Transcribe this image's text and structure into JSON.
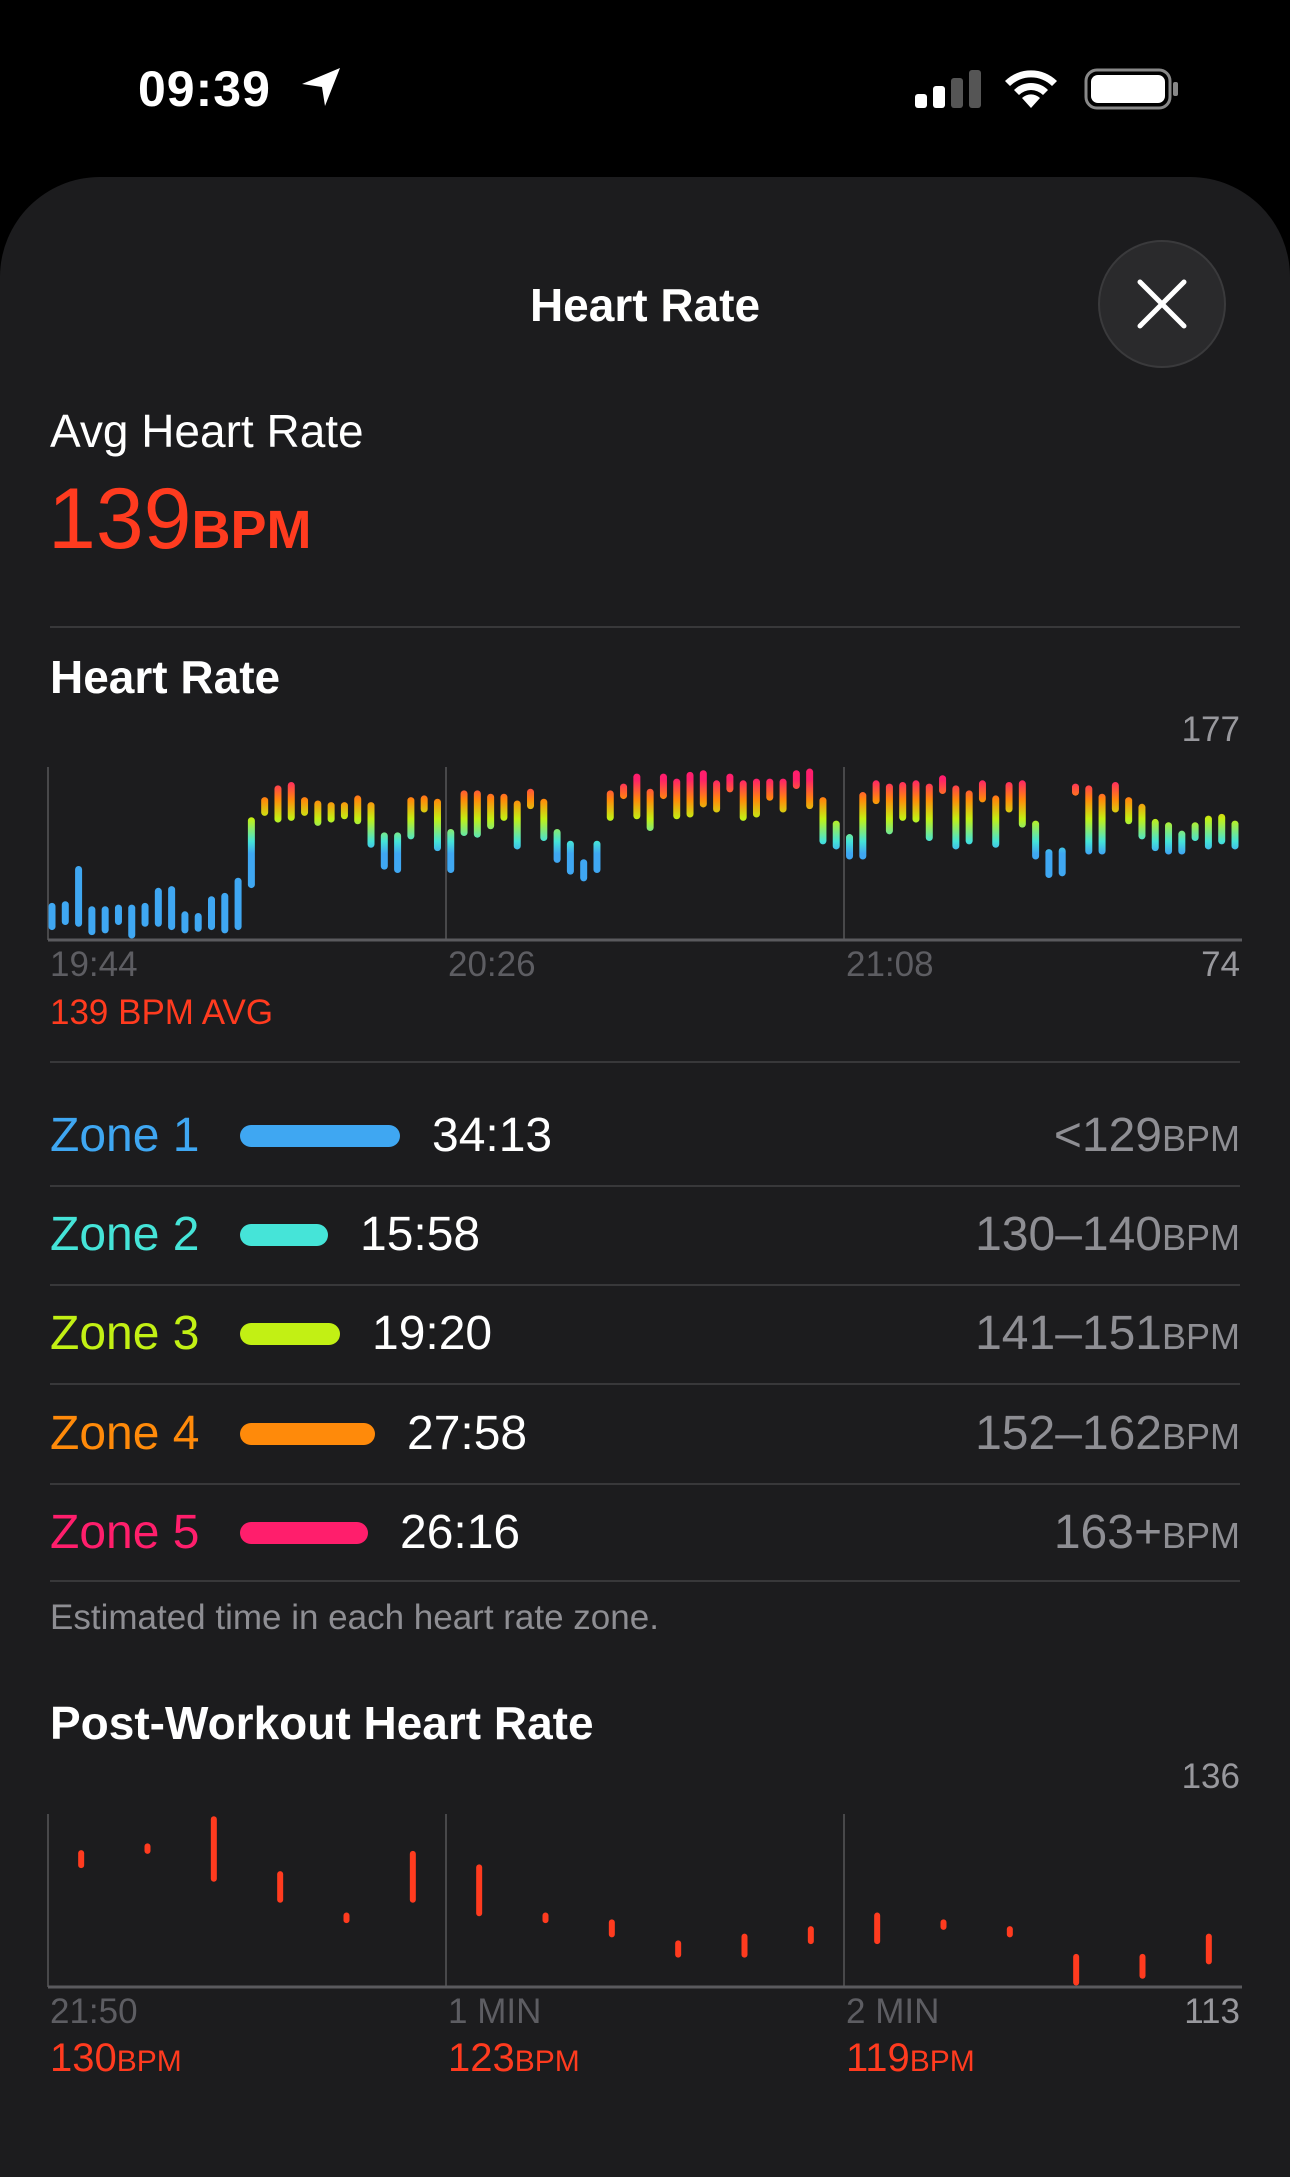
{
  "status_bar": {
    "time": "09:39",
    "icons": [
      "location-arrow-icon",
      "cellular-signal-icon",
      "wifi-icon",
      "battery-icon"
    ]
  },
  "header": {
    "title": "Heart Rate",
    "close_icon": "close-icon"
  },
  "summary": {
    "label": "Avg Heart Rate",
    "value": "139",
    "unit": "BPM"
  },
  "heart_rate_section": {
    "title": "Heart Rate",
    "avg_label": "139 BPM AVG"
  },
  "zones": [
    {
      "name": "Zone 1",
      "time": "34:13",
      "range": "<129",
      "unit": "BPM",
      "color": "#3fa7f2",
      "share": 0.277
    },
    {
      "name": "Zone 2",
      "time": "15:58",
      "range": "130–140",
      "unit": "BPM",
      "color": "#45e4d8",
      "share": 0.129
    },
    {
      "name": "Zone 3",
      "time": "19:20",
      "range": "141–151",
      "unit": "BPM",
      "color": "#c2f014",
      "share": 0.157
    },
    {
      "name": "Zone 4",
      "time": "27:58",
      "range": "152–162",
      "unit": "BPM",
      "color": "#ff8a0a",
      "share": 0.226
    },
    {
      "name": "Zone 5",
      "time": "26:16",
      "range": "163+",
      "unit": "BPM",
      "color": "#ff1e6c",
      "share": 0.212
    }
  ],
  "zones_footnote": "Estimated time in each heart rate zone.",
  "post_section": {
    "title": "Post-Workout Heart Rate",
    "readings": [
      {
        "value": "130",
        "unit": "BPM"
      },
      {
        "value": "123",
        "unit": "BPM"
      },
      {
        "value": "119",
        "unit": "BPM"
      }
    ]
  },
  "chart_data": [
    {
      "type": "bar",
      "subtype": "range",
      "x_tick_labels": [
        "19:44",
        "20:26",
        "21:08"
      ],
      "y_max_label": "177",
      "y_min_label": "74",
      "ylim": [
        74,
        177
      ],
      "grid": "vertical",
      "color_by": "heart rate zone",
      "ranges": [
        [
          82,
          94
        ],
        [
          85,
          95
        ],
        [
          84,
          116
        ],
        [
          79,
          92
        ],
        [
          80,
          92
        ],
        [
          85,
          93
        ],
        [
          77,
          93
        ],
        [
          84,
          94
        ],
        [
          84,
          103
        ],
        [
          82,
          104
        ],
        [
          80,
          89
        ],
        [
          81,
          88
        ],
        [
          82,
          98
        ],
        [
          80,
          100
        ],
        [
          82,
          109
        ],
        [
          107,
          145
        ],
        [
          150,
          157
        ],
        [
          146,
          164
        ],
        [
          147,
          166
        ],
        [
          150,
          157
        ],
        [
          144,
          155
        ],
        [
          146,
          154
        ],
        [
          148,
          154
        ],
        [
          145,
          158
        ],
        [
          131,
          154
        ],
        [
          118,
          136
        ],
        [
          116,
          136
        ],
        [
          136,
          157
        ],
        [
          152,
          158
        ],
        [
          129,
          156
        ],
        [
          116,
          138
        ],
        [
          138,
          161
        ],
        [
          137,
          161
        ],
        [
          142,
          159
        ],
        [
          147,
          159
        ],
        [
          130,
          155
        ],
        [
          154,
          162
        ],
        [
          135,
          156
        ],
        [
          122,
          138
        ],
        [
          115,
          131
        ],
        [
          111,
          120
        ],
        [
          116,
          131
        ],
        [
          147,
          161
        ],
        [
          160,
          165
        ],
        [
          148,
          171
        ],
        [
          141,
          162
        ],
        [
          160,
          171
        ],
        [
          148,
          168
        ],
        [
          149,
          172
        ],
        [
          155,
          173
        ],
        [
          152,
          167
        ],
        [
          164,
          171
        ],
        [
          147,
          167
        ],
        [
          149,
          168
        ],
        [
          159,
          168
        ],
        [
          152,
          168
        ],
        [
          166,
          173
        ],
        [
          154,
          174
        ],
        [
          133,
          157
        ],
        [
          130,
          143
        ],
        [
          124,
          135
        ],
        [
          124,
          160
        ],
        [
          157,
          167
        ],
        [
          139,
          165
        ],
        [
          147,
          166
        ],
        [
          146,
          167
        ],
        [
          135,
          165
        ],
        [
          163,
          170
        ],
        [
          130,
          164
        ],
        [
          133,
          161
        ],
        [
          158,
          167
        ],
        [
          131,
          158
        ],
        [
          152,
          166
        ],
        [
          143,
          167
        ],
        [
          124,
          143
        ],
        [
          113,
          126
        ],
        [
          114,
          127
        ],
        [
          162,
          165
        ],
        [
          127,
          164
        ],
        [
          127,
          159
        ],
        [
          152,
          166
        ],
        [
          145,
          157
        ],
        [
          136,
          153
        ],
        [
          129,
          144
        ],
        [
          127,
          142
        ],
        [
          127,
          137
        ],
        [
          135,
          142
        ],
        [
          130,
          146
        ],
        [
          133,
          147
        ],
        [
          130,
          143
        ]
      ]
    },
    {
      "type": "bar",
      "subtype": "range",
      "x_tick_labels": [
        "21:50",
        "1 MIN",
        "2 MIN"
      ],
      "x_unit": "seconds",
      "xlim": [
        0,
        180
      ],
      "y_max_label": "136",
      "y_min_label": "113",
      "ylim": [
        113,
        136
      ],
      "grid": "vertical",
      "color": "#ff3b1f",
      "x": [
        5,
        15,
        25,
        35,
        45,
        55,
        65,
        75,
        85,
        95,
        105,
        115,
        125,
        135,
        145,
        155,
        165,
        175
      ],
      "ranges": [
        [
          129.2,
          130.8
        ],
        [
          131.1,
          131.7
        ],
        [
          127.4,
          135.3
        ],
        [
          124.6,
          128.0
        ],
        [
          121.9,
          122.5
        ],
        [
          124.6,
          130.7
        ],
        [
          122.8,
          128.9
        ],
        [
          121.9,
          122.5
        ],
        [
          120.0,
          121.6
        ],
        [
          117.3,
          118.8
        ],
        [
          117.3,
          119.7
        ],
        [
          119.1,
          120.7
        ],
        [
          119.1,
          122.5
        ],
        [
          121.0,
          121.6
        ],
        [
          120.0,
          120.7
        ],
        [
          113.6,
          117.0
        ],
        [
          114.5,
          117.0
        ],
        [
          116.4,
          119.7
        ]
      ]
    }
  ]
}
